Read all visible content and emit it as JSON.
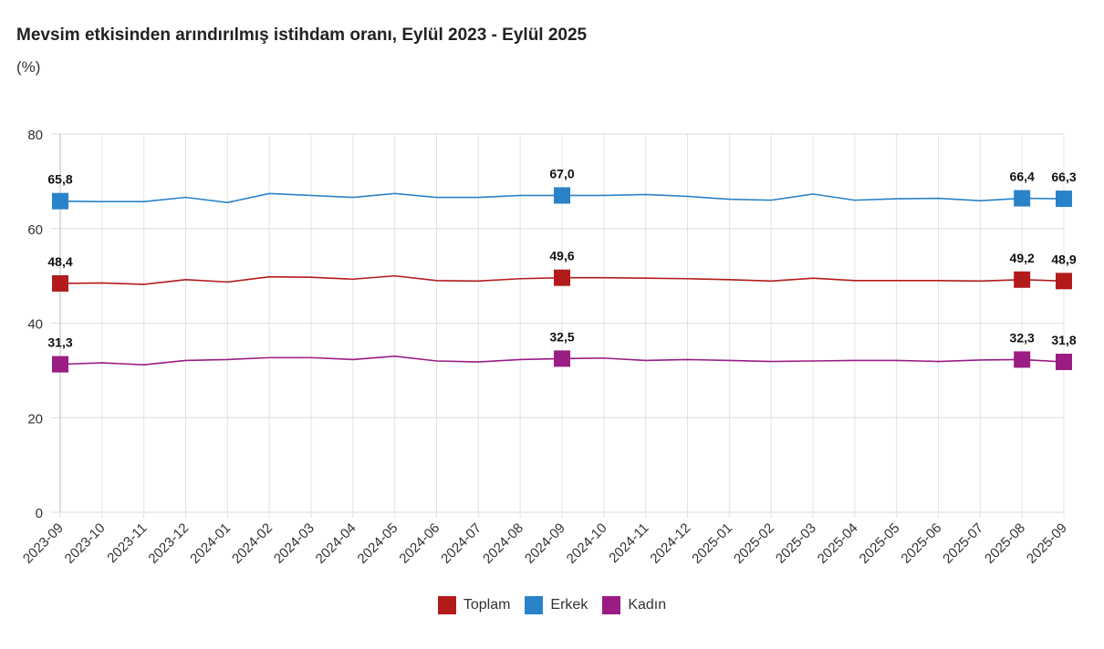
{
  "title": "Mevsim etkisinden arındırılmış istihdam oranı, Eylül 2023 - Eylül 2025",
  "unit": "(%)",
  "chart_data": {
    "type": "line",
    "title": "Mevsim etkisinden arındırılmış istihdam oranı, Eylül 2023 - Eylül 2025",
    "ylabel": "(%)",
    "ylim": [
      0,
      80
    ],
    "yticks": [
      "0",
      "20",
      "40",
      "60",
      "80"
    ],
    "grid": true,
    "legend_position": "bottom",
    "categories": [
      "2023-09",
      "2023-10",
      "2023-11",
      "2023-12",
      "2024-01",
      "2024-02",
      "2024-03",
      "2024-04",
      "2024-05",
      "2024-06",
      "2024-07",
      "2024-08",
      "2024-09",
      "2024-10",
      "2024-11",
      "2024-12",
      "2025-01",
      "2025-02",
      "2025-03",
      "2025-04",
      "2025-05",
      "2025-06",
      "2025-07",
      "2025-08",
      "2025-09"
    ],
    "series": [
      {
        "name": "Toplam",
        "color": "#b31b1b",
        "values": [
          48.4,
          48.5,
          48.2,
          49.2,
          48.7,
          49.8,
          49.7,
          49.3,
          50.0,
          49.0,
          48.9,
          49.4,
          49.6,
          49.6,
          49.5,
          49.4,
          49.2,
          48.9,
          49.5,
          49.0,
          49.0,
          49.0,
          48.9,
          49.2,
          48.9
        ],
        "labels": {
          "0": "48,4",
          "12": "49,6",
          "23": "49,2",
          "24": "48,9"
        }
      },
      {
        "name": "Erkek",
        "color": "#2a82c8",
        "values": [
          65.8,
          65.7,
          65.7,
          66.6,
          65.5,
          67.4,
          67.0,
          66.6,
          67.4,
          66.6,
          66.6,
          67.0,
          67.0,
          67.0,
          67.2,
          66.8,
          66.2,
          66.0,
          67.3,
          66.0,
          66.3,
          66.4,
          65.9,
          66.4,
          66.3
        ],
        "labels": {
          "0": "65,8",
          "12": "67,0",
          "23": "66,4",
          "24": "66,3"
        }
      },
      {
        "name": "Kadın",
        "color": "#9b1c82",
        "values": [
          31.3,
          31.6,
          31.2,
          32.1,
          32.3,
          32.7,
          32.7,
          32.3,
          33.0,
          32.0,
          31.8,
          32.3,
          32.5,
          32.6,
          32.1,
          32.3,
          32.1,
          31.9,
          32.0,
          32.1,
          32.1,
          31.9,
          32.2,
          32.3,
          31.8
        ],
        "labels": {
          "0": "31,3",
          "12": "32,5",
          "23": "32,3",
          "24": "31,8"
        }
      }
    ]
  }
}
